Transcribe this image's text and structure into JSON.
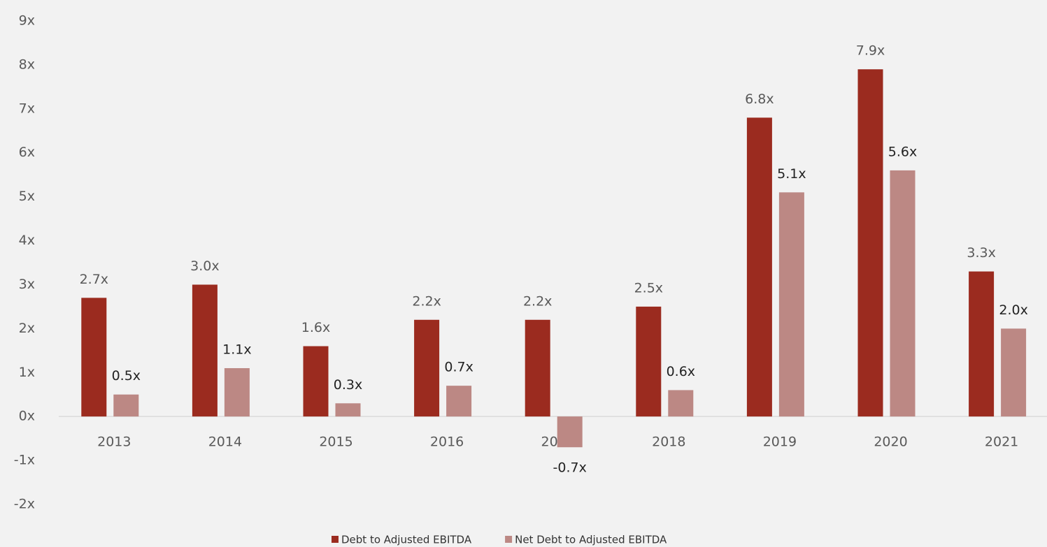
{
  "chart_data": {
    "type": "bar",
    "categories": [
      "2013",
      "2014",
      "2015",
      "2016",
      "2017",
      "2018",
      "2019",
      "2020",
      "2021"
    ],
    "series": [
      {
        "name": "Debt to Adjusted EBITDA",
        "color": "#9b2b1f",
        "values": [
          2.7,
          3.0,
          1.6,
          2.2,
          2.2,
          2.5,
          6.8,
          7.9,
          3.3
        ],
        "value_labels": [
          "2.7x",
          "3.0x",
          "1.6x",
          "2.2x",
          "2.2x",
          "2.5x",
          "6.8x",
          "7.9x",
          "3.3x"
        ]
      },
      {
        "name": "Net Debt to Adjusted EBITDA",
        "color": "#bc8884",
        "values": [
          0.5,
          1.1,
          0.3,
          0.7,
          -0.7,
          0.6,
          5.1,
          5.6,
          2.0
        ],
        "value_labels": [
          "0.5x",
          "1.1x",
          "0.3x",
          "0.7x",
          "-0.7x",
          "0.6x",
          "5.1x",
          "5.6x",
          "2.0x"
        ]
      }
    ],
    "ylim": [
      -2,
      9
    ],
    "yticks": [
      {
        "value": -2,
        "label": "-2x"
      },
      {
        "value": -1,
        "label": "-1x"
      },
      {
        "value": 0,
        "label": "0x"
      },
      {
        "value": 1,
        "label": "1x"
      },
      {
        "value": 2,
        "label": "2x"
      },
      {
        "value": 3,
        "label": "3x"
      },
      {
        "value": 4,
        "label": "4x"
      },
      {
        "value": 5,
        "label": "5x"
      },
      {
        "value": 6,
        "label": "6x"
      },
      {
        "value": 7,
        "label": "7x"
      },
      {
        "value": 8,
        "label": "8x"
      },
      {
        "value": 9,
        "label": "9x"
      }
    ],
    "grid": false,
    "legend": "bottom"
  }
}
